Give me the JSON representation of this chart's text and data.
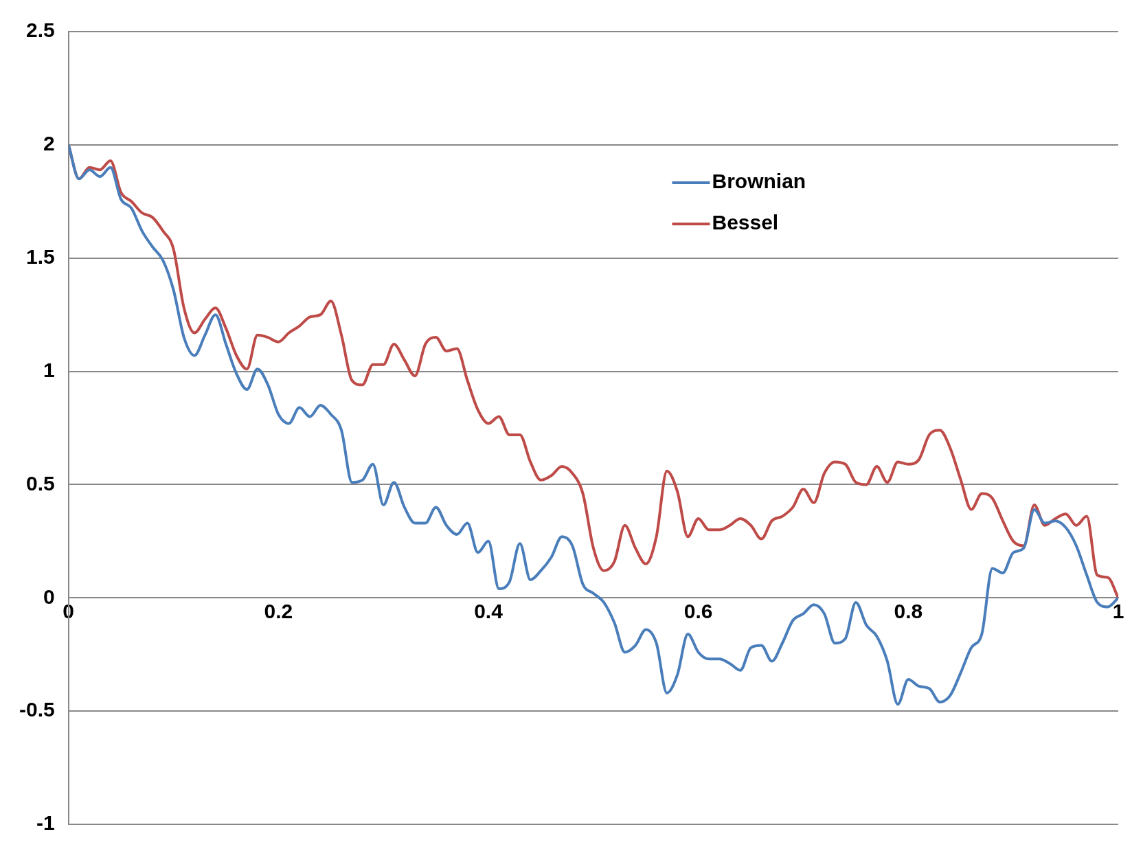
{
  "chart_data": {
    "type": "line",
    "x": [
      0,
      0.01,
      0.02,
      0.03,
      0.04,
      0.05,
      0.06,
      0.07,
      0.08,
      0.09,
      0.1,
      0.11,
      0.12,
      0.13,
      0.14,
      0.15,
      0.16,
      0.17,
      0.18,
      0.19,
      0.2,
      0.21,
      0.22,
      0.23,
      0.24,
      0.25,
      0.26,
      0.27,
      0.28,
      0.29,
      0.3,
      0.31,
      0.32,
      0.33,
      0.34,
      0.35,
      0.36,
      0.37,
      0.38,
      0.39,
      0.4,
      0.41,
      0.42,
      0.43,
      0.44,
      0.45,
      0.46,
      0.47,
      0.48,
      0.49,
      0.5,
      0.51,
      0.52,
      0.53,
      0.54,
      0.55,
      0.56,
      0.57,
      0.58,
      0.59,
      0.6,
      0.61,
      0.62,
      0.63,
      0.64,
      0.65,
      0.66,
      0.67,
      0.68,
      0.69,
      0.7,
      0.71,
      0.72,
      0.73,
      0.74,
      0.75,
      0.76,
      0.77,
      0.78,
      0.79,
      0.8,
      0.81,
      0.82,
      0.83,
      0.84,
      0.85,
      0.86,
      0.87,
      0.88,
      0.89,
      0.9,
      0.91,
      0.92,
      0.93,
      0.94,
      0.95,
      0.96,
      0.97,
      0.98,
      0.99,
      1
    ],
    "series": [
      {
        "name": "Brownian",
        "color": "#4a7ebb",
        "values": [
          2,
          1.85,
          1.89,
          1.86,
          1.9,
          1.76,
          1.72,
          1.62,
          1.55,
          1.49,
          1.36,
          1.15,
          1.07,
          1.16,
          1.25,
          1.12,
          0.99,
          0.92,
          1.01,
          0.94,
          0.81,
          0.77,
          0.84,
          0.8,
          0.85,
          0.81,
          0.74,
          0.51,
          0.52,
          0.59,
          0.41,
          0.51,
          0.4,
          0.33,
          0.33,
          0.4,
          0.32,
          0.28,
          0.33,
          0.2,
          0.25,
          0.04,
          0.07,
          0.24,
          0.08,
          0.12,
          0.18,
          0.27,
          0.23,
          0.06,
          0.02,
          -0.02,
          -0.11,
          -0.24,
          -0.21,
          -0.14,
          -0.2,
          -0.42,
          -0.34,
          -0.16,
          -0.24,
          -0.27,
          -0.27,
          -0.29,
          -0.32,
          -0.22,
          -0.21,
          -0.28,
          -0.2,
          -0.1,
          -0.07,
          -0.03,
          -0.07,
          -0.2,
          -0.18,
          -0.02,
          -0.12,
          -0.17,
          -0.28,
          -0.47,
          -0.36,
          -0.39,
          -0.4,
          -0.46,
          -0.43,
          -0.33,
          -0.22,
          -0.16,
          0.13,
          0.11,
          0.2,
          0.22,
          0.39,
          0.33,
          0.34,
          0.31,
          0.23,
          0.1,
          -0.02,
          -0.04,
          0
        ]
      },
      {
        "name": "Bessel",
        "color": "#be4b48",
        "values": [
          2,
          1.85,
          1.9,
          1.89,
          1.93,
          1.79,
          1.75,
          1.7,
          1.68,
          1.62,
          1.54,
          1.28,
          1.17,
          1.23,
          1.28,
          1.19,
          1.07,
          1.01,
          1.16,
          1.15,
          1.13,
          1.17,
          1.2,
          1.24,
          1.25,
          1.31,
          1.16,
          0.96,
          0.94,
          1.03,
          1.03,
          1.12,
          1.05,
          0.98,
          1.12,
          1.15,
          1.09,
          1.1,
          0.96,
          0.83,
          0.77,
          0.8,
          0.72,
          0.72,
          0.6,
          0.52,
          0.54,
          0.58,
          0.55,
          0.46,
          0.22,
          0.12,
          0.16,
          0.32,
          0.22,
          0.15,
          0.27,
          0.56,
          0.47,
          0.27,
          0.35,
          0.3,
          0.3,
          0.32,
          0.35,
          0.32,
          0.26,
          0.34,
          0.36,
          0.4,
          0.48,
          0.42,
          0.55,
          0.6,
          0.59,
          0.51,
          0.5,
          0.58,
          0.51,
          0.6,
          0.59,
          0.61,
          0.72,
          0.74,
          0.66,
          0.52,
          0.39,
          0.46,
          0.44,
          0.34,
          0.25,
          0.23,
          0.41,
          0.32,
          0.35,
          0.37,
          0.32,
          0.36,
          0.1,
          0.09,
          0
        ]
      }
    ],
    "xlim": [
      0,
      1
    ],
    "xticks": [
      0,
      0.2,
      0.4,
      0.6,
      0.8,
      1
    ],
    "ylim": [
      -1,
      2.5
    ],
    "yticks": [
      -1,
      -0.5,
      0,
      0.5,
      1,
      1.5,
      2,
      2.5
    ],
    "grid": "y",
    "legend": "top right",
    "marker": "none",
    "line_style": "solid"
  }
}
